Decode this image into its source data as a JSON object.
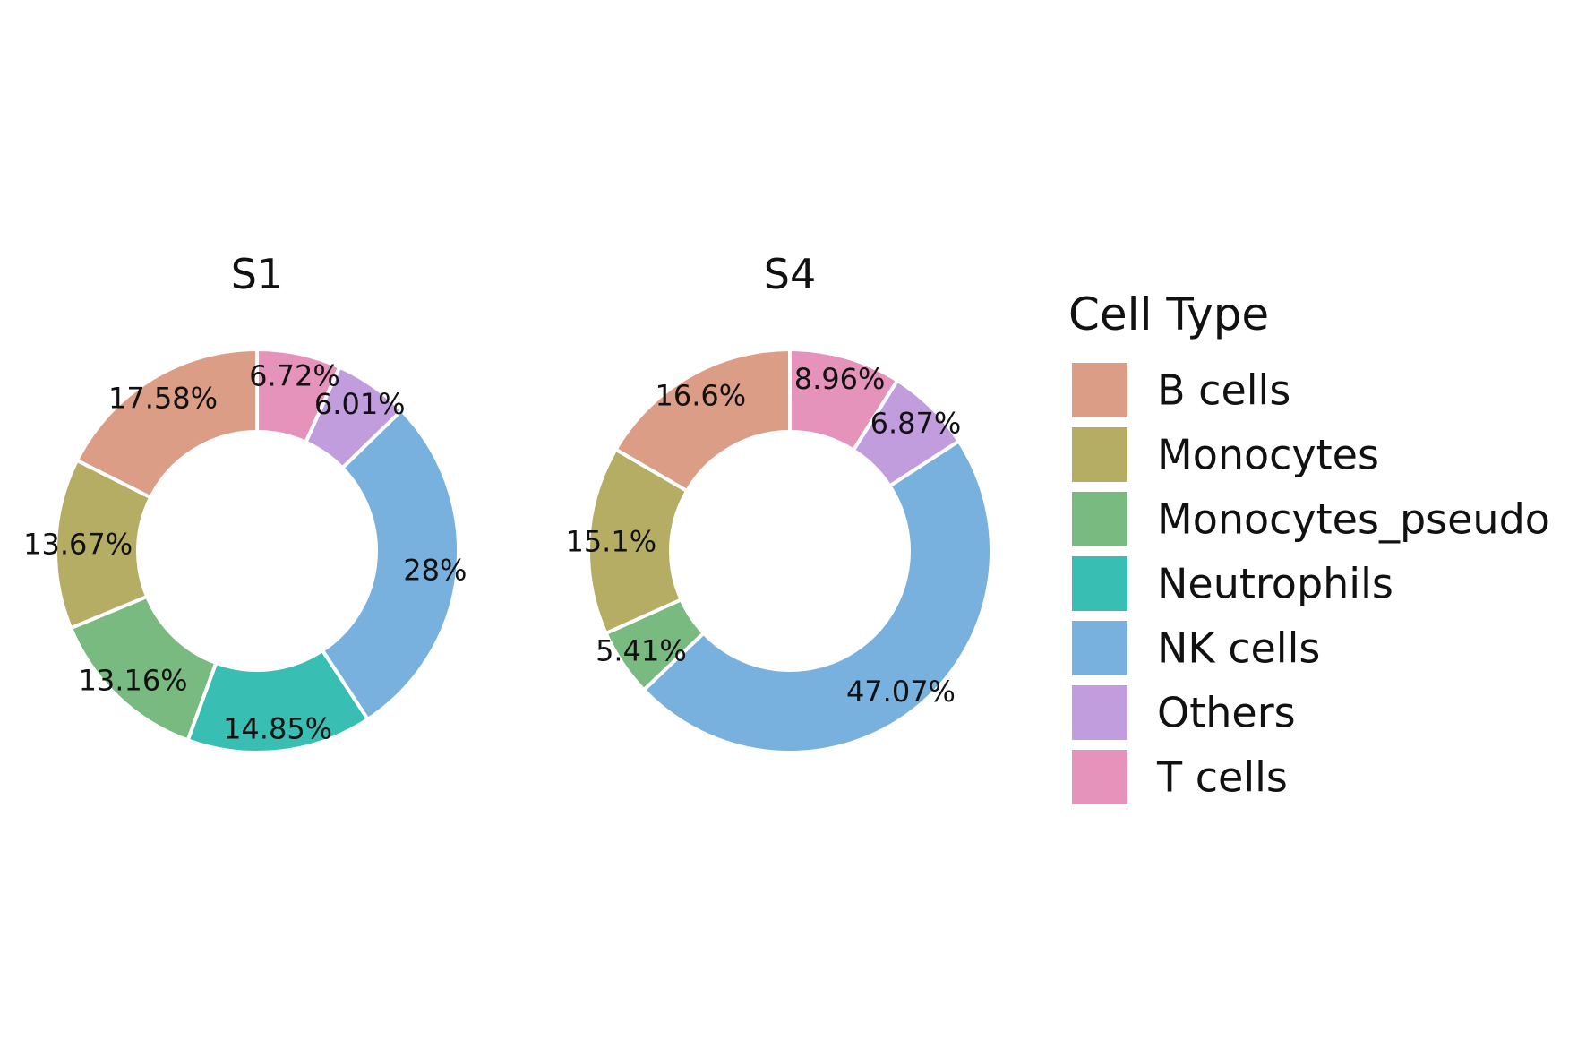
{
  "chart_data": {
    "type": "pie",
    "style": "donut",
    "legend": {
      "title": "Cell Type",
      "placement": "right",
      "entries": [
        {
          "name": "B cells",
          "color": "#DB9D85"
        },
        {
          "name": "Monocytes",
          "color": "#B5AD63"
        },
        {
          "name": "Monocytes_pseudo",
          "color": "#78BA80"
        },
        {
          "name": "Neutrophils",
          "color": "#39BEB4"
        },
        {
          "name": "NK cells",
          "color": "#78B1DD"
        },
        {
          "name": "Others",
          "color": "#C29DDE"
        },
        {
          "name": "T cells",
          "color": "#E593BB"
        }
      ]
    },
    "charts": [
      {
        "title": "S1",
        "slices": [
          {
            "category": "T cells",
            "value": 6.72,
            "label": "6.72%"
          },
          {
            "category": "Others",
            "value": 6.01,
            "label": "6.01%"
          },
          {
            "category": "NK cells",
            "value": 28.0,
            "label": "28%"
          },
          {
            "category": "Neutrophils",
            "value": 14.85,
            "label": "14.85%"
          },
          {
            "category": "Monocytes_pseudo",
            "value": 13.16,
            "label": "13.16%"
          },
          {
            "category": "Monocytes",
            "value": 13.67,
            "label": "13.67%"
          },
          {
            "category": "B cells",
            "value": 17.58,
            "label": "17.58%"
          }
        ]
      },
      {
        "title": "S4",
        "slices": [
          {
            "category": "T cells",
            "value": 8.96,
            "label": "8.96%"
          },
          {
            "category": "Others",
            "value": 6.87,
            "label": "6.87%"
          },
          {
            "category": "NK cells",
            "value": 47.07,
            "label": "47.07%"
          },
          {
            "category": "Monocytes_pseudo",
            "value": 5.41,
            "label": "5.41%"
          },
          {
            "category": "Monocytes",
            "value": 15.1,
            "label": "15.1%"
          },
          {
            "category": "B cells",
            "value": 16.6,
            "label": "16.6%"
          }
        ]
      }
    ]
  }
}
